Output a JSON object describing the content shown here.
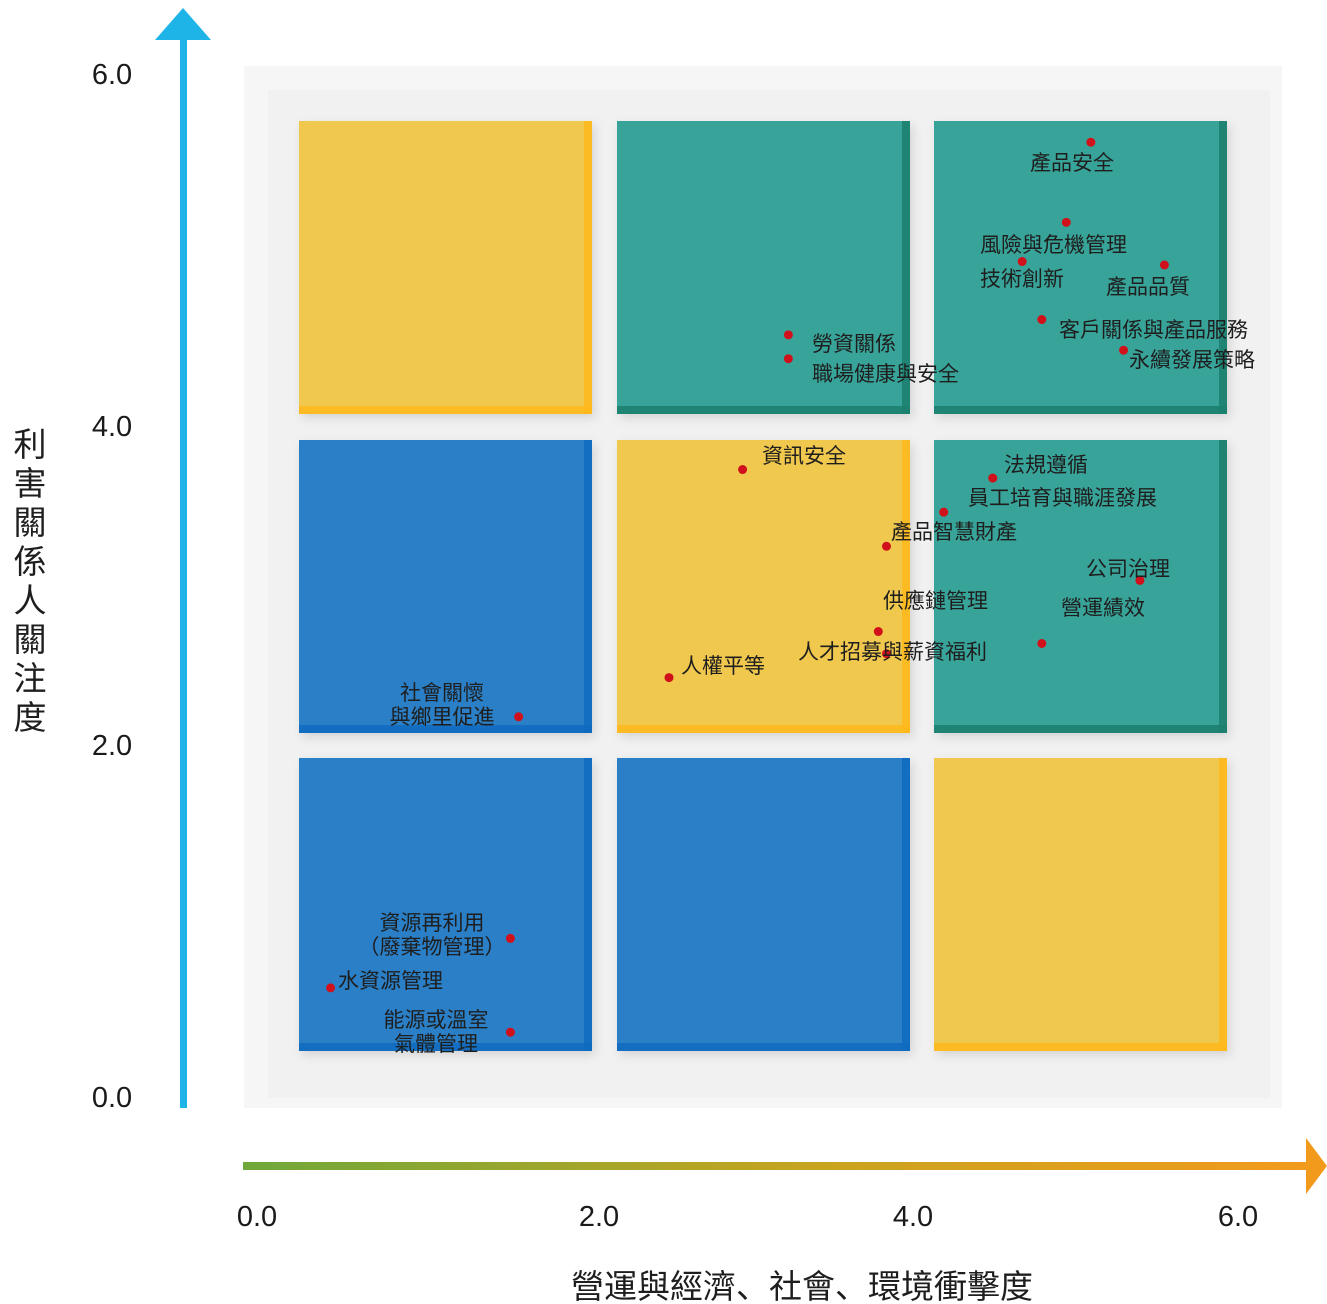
{
  "chart_data": {
    "type": "scatter",
    "title": "",
    "xlabel": "營運與經濟、社會、環境衝擊度",
    "ylabel": "利害關係人關注度",
    "xlim": [
      0,
      6
    ],
    "ylim": [
      0,
      6
    ],
    "x_ticks": [
      "0.0",
      "2.0",
      "4.0",
      "6.0"
    ],
    "y_ticks": [
      "0.0",
      "2.0",
      "4.0",
      "6.0"
    ],
    "grid": false,
    "legend": "none",
    "quadrant_colors": {
      "yellow": "#f0c84e",
      "teal": "#37a398",
      "blue": "#2a7fc6"
    },
    "quadrants": [
      [
        "yellow",
        "teal",
        "teal"
      ],
      [
        "blue",
        "yellow",
        "teal"
      ],
      [
        "blue",
        "blue",
        "yellow"
      ]
    ],
    "points": [
      {
        "label": "產品安全",
        "x": 5.1,
        "y": 5.6
      },
      {
        "label": "風險與危機管理",
        "x": 4.95,
        "y": 5.13
      },
      {
        "label": "技術創新",
        "x": 4.68,
        "y": 4.9
      },
      {
        "label": "產品品質",
        "x": 5.55,
        "y": 4.88
      },
      {
        "label": "客戶關係與產品服務",
        "x": 4.8,
        "y": 4.56
      },
      {
        "label": "永續發展策略",
        "x": 5.3,
        "y": 4.38
      },
      {
        "label": "勞資關係",
        "x": 3.25,
        "y": 4.47
      },
      {
        "label": "職場健康與安全",
        "x": 3.25,
        "y": 4.33
      },
      {
        "label": "資訊安全",
        "x": 2.97,
        "y": 3.68
      },
      {
        "label": "法規遵循",
        "x": 4.5,
        "y": 3.63
      },
      {
        "label": "員工培育與職涯發展",
        "x": 4.2,
        "y": 3.43
      },
      {
        "label": "產品智慧財產",
        "x": 3.85,
        "y": 3.23
      },
      {
        "label": "公司治理",
        "x": 5.4,
        "y": 3.03
      },
      {
        "label": "供應鏈管理",
        "x": 3.8,
        "y": 2.73
      },
      {
        "label": "營運績效",
        "x": 4.8,
        "y": 2.66
      },
      {
        "label": "人才招募與薪資福利",
        "x": 3.85,
        "y": 2.6
      },
      {
        "label": "人權平等",
        "x": 2.52,
        "y": 2.46
      },
      {
        "label": "社會關懷\n與鄉里促進",
        "x": 1.6,
        "y": 2.23
      },
      {
        "label": "資源再利用\n（廢棄物管理）",
        "x": 1.55,
        "y": 0.93
      },
      {
        "label": "水資源管理",
        "x": 0.45,
        "y": 0.64
      },
      {
        "label": "能源或溫室\n氣體管理",
        "x": 1.55,
        "y": 0.38
      }
    ]
  }
}
